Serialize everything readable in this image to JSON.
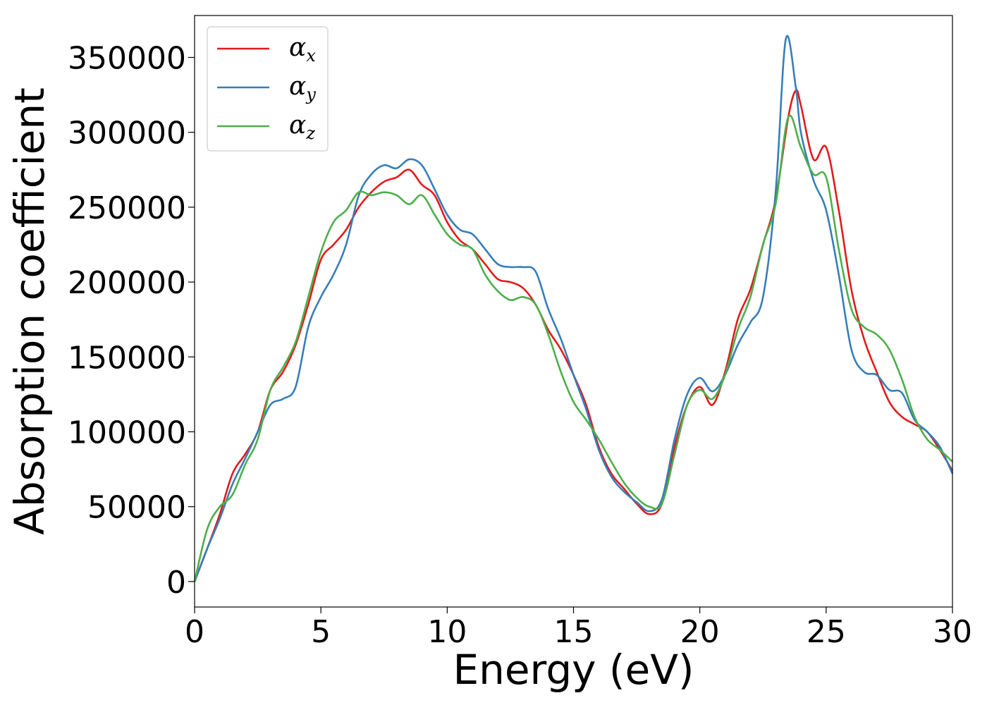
{
  "chart_data": {
    "type": "line",
    "title": "",
    "xlabel": "Energy (eV)",
    "ylabel": "Absorption coefficient",
    "xlim": [
      0,
      30
    ],
    "ylim": [
      -17000,
      378000
    ],
    "xticks": [
      0,
      5,
      10,
      15,
      20,
      25,
      30
    ],
    "yticks": [
      0,
      50000,
      100000,
      150000,
      200000,
      250000,
      300000,
      350000
    ],
    "grid": false,
    "legend_position": "top-left",
    "series": [
      {
        "name": "α_x",
        "legend_symbol": "α",
        "legend_subscript": "x",
        "color": "#e41a1c",
        "x": [
          0,
          0.5,
          1,
          1.5,
          2,
          2.5,
          3,
          3.5,
          4,
          4.5,
          5,
          5.5,
          6,
          6.5,
          7,
          7.5,
          8,
          8.5,
          9,
          9.5,
          10,
          10.5,
          11,
          11.5,
          12,
          12.5,
          13,
          13.5,
          14,
          14.5,
          15,
          15.5,
          16,
          16.5,
          17,
          17.5,
          18,
          18.5,
          19,
          19.5,
          20,
          20.5,
          21,
          21.5,
          22,
          22.5,
          23,
          23.5,
          23.8,
          24,
          24.5,
          25,
          25.5,
          26,
          26.5,
          27,
          27.5,
          28,
          28.5,
          29,
          29.5,
          30
        ],
        "y": [
          0,
          22000,
          45000,
          72000,
          85000,
          100000,
          128000,
          140000,
          158000,
          185000,
          215000,
          225000,
          235000,
          250000,
          260000,
          267000,
          270000,
          275000,
          265000,
          258000,
          240000,
          228000,
          222000,
          212000,
          202000,
          200000,
          196000,
          185000,
          168000,
          155000,
          138000,
          118000,
          90000,
          72000,
          62000,
          52000,
          45000,
          52000,
          90000,
          118000,
          130000,
          118000,
          140000,
          175000,
          195000,
          225000,
          255000,
          310000,
          328000,
          318000,
          282000,
          290000,
          248000,
          195000,
          162000,
          140000,
          120000,
          110000,
          105000,
          100000,
          88000,
          74000
        ]
      },
      {
        "name": "α_y",
        "legend_symbol": "α",
        "legend_subscript": "y",
        "color": "#377eb8",
        "x": [
          0,
          0.5,
          1,
          1.5,
          2,
          2.5,
          3,
          3.5,
          4,
          4.5,
          5,
          5.5,
          6,
          6.5,
          7,
          7.5,
          8,
          8.5,
          9,
          9.5,
          10,
          10.5,
          11,
          11.5,
          12,
          12.5,
          13,
          13.5,
          14,
          14.5,
          15,
          15.5,
          16,
          16.5,
          17,
          17.5,
          18,
          18.5,
          19,
          19.5,
          20,
          20.5,
          21,
          21.5,
          22,
          22.5,
          23,
          23.4,
          23.8,
          24,
          24.5,
          25,
          25.5,
          26,
          26.5,
          27,
          27.5,
          28,
          28.5,
          29,
          29.5,
          30
        ],
        "y": [
          0,
          22000,
          42000,
          65000,
          82000,
          100000,
          118000,
          122000,
          130000,
          170000,
          190000,
          205000,
          225000,
          258000,
          272000,
          278000,
          276000,
          282000,
          278000,
          262000,
          245000,
          235000,
          232000,
          222000,
          212000,
          210000,
          210000,
          207000,
          182000,
          162000,
          138000,
          115000,
          88000,
          70000,
          60000,
          53000,
          47000,
          55000,
          95000,
          125000,
          136000,
          127000,
          138000,
          158000,
          173000,
          190000,
          260000,
          362000,
          330000,
          300000,
          268000,
          248000,
          205000,
          155000,
          140000,
          138000,
          128000,
          126000,
          108000,
          100000,
          90000,
          72000
        ]
      },
      {
        "name": "α_z",
        "legend_symbol": "α",
        "legend_subscript": "z",
        "color": "#4daf4a",
        "x": [
          0,
          0.5,
          1,
          1.5,
          2,
          2.5,
          3,
          3.5,
          4,
          4.5,
          5,
          5.5,
          6,
          6.5,
          7,
          7.5,
          8,
          8.5,
          9,
          9.5,
          10,
          10.5,
          11,
          11.5,
          12,
          12.5,
          13,
          13.5,
          14,
          14.5,
          15,
          15.5,
          16,
          16.5,
          17,
          17.5,
          18,
          18.5,
          19,
          19.5,
          20,
          20.5,
          21,
          21.5,
          22,
          22.5,
          23,
          23.5,
          24,
          24.5,
          25,
          25.5,
          26,
          26.5,
          27,
          27.5,
          28,
          28.5,
          29,
          29.5,
          30
        ],
        "y": [
          0,
          35000,
          50000,
          58000,
          78000,
          95000,
          128000,
          143000,
          160000,
          190000,
          220000,
          240000,
          248000,
          260000,
          258000,
          260000,
          258000,
          252000,
          258000,
          245000,
          232000,
          225000,
          222000,
          205000,
          194000,
          188000,
          190000,
          185000,
          165000,
          140000,
          120000,
          108000,
          95000,
          80000,
          66000,
          56000,
          50000,
          52000,
          85000,
          118000,
          128000,
          122000,
          138000,
          168000,
          190000,
          225000,
          252000,
          310000,
          290000,
          272000,
          270000,
          222000,
          182000,
          170000,
          165000,
          155000,
          135000,
          110000,
          95000,
          88000,
          80000
        ]
      }
    ]
  }
}
